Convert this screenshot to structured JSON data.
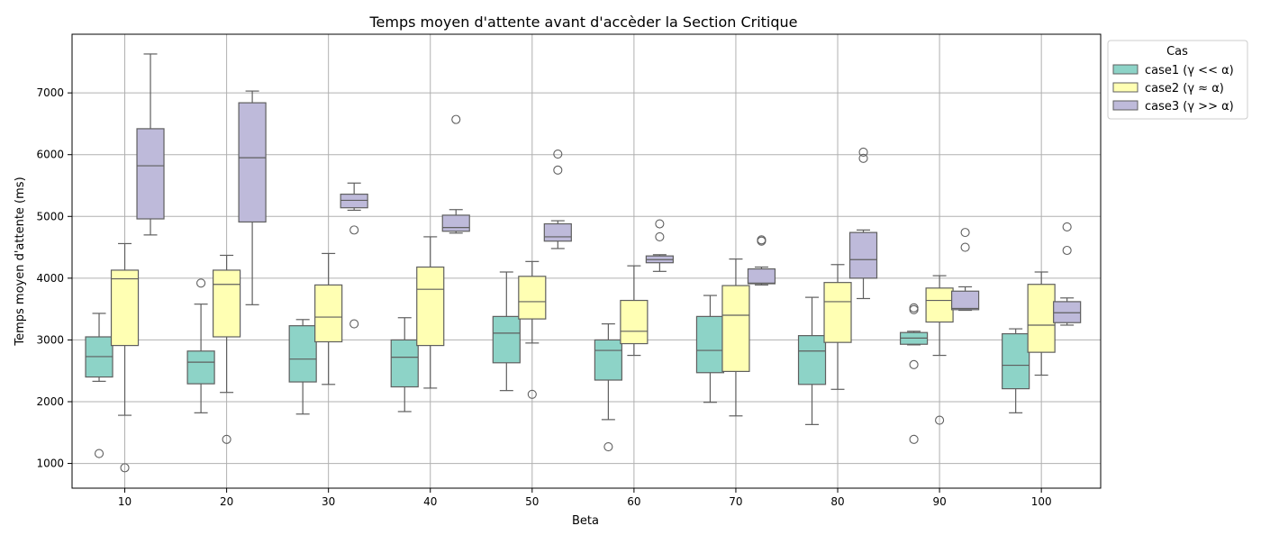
{
  "chart_data": {
    "type": "box",
    "title": "Temps moyen d'attente avant d'accèder la Section Critique",
    "xlabel": "Beta",
    "ylabel": "Temps moyen d'attente (ms)",
    "ylim": [
      600,
      7950
    ],
    "yticks": [
      1000,
      2000,
      3000,
      4000,
      5000,
      6000,
      7000
    ],
    "grid": true,
    "legend": {
      "title": "Cas",
      "placement": "upper-right-outside"
    },
    "categories": [
      "10",
      "20",
      "30",
      "40",
      "50",
      "60",
      "70",
      "80",
      "90",
      "100"
    ],
    "series": [
      {
        "name": "case1 (γ << α)",
        "color": "#8dd3c7",
        "boxes": [
          {
            "whislo": 2330,
            "q1": 2400,
            "med": 2730,
            "q3": 3050,
            "whishi": 3430,
            "fliers": [
              1160
            ]
          },
          {
            "whislo": 1820,
            "q1": 2290,
            "med": 2640,
            "q3": 2820,
            "whishi": 3580,
            "fliers": [
              3920
            ]
          },
          {
            "whislo": 1800,
            "q1": 2320,
            "med": 2690,
            "q3": 3230,
            "whishi": 3330,
            "fliers": []
          },
          {
            "whislo": 1840,
            "q1": 2240,
            "med": 2720,
            "q3": 3000,
            "whishi": 3360,
            "fliers": []
          },
          {
            "whislo": 2180,
            "q1": 2630,
            "med": 3110,
            "q3": 3380,
            "whishi": 4100,
            "fliers": []
          },
          {
            "whislo": 1710,
            "q1": 2350,
            "med": 2830,
            "q3": 3000,
            "whishi": 3260,
            "fliers": [
              1270
            ]
          },
          {
            "whislo": 1990,
            "q1": 2470,
            "med": 2830,
            "q3": 3380,
            "whishi": 3720,
            "fliers": []
          },
          {
            "whislo": 1630,
            "q1": 2280,
            "med": 2820,
            "q3": 3070,
            "whishi": 3690,
            "fliers": []
          },
          {
            "whislo": 2920,
            "q1": 2930,
            "med": 3030,
            "q3": 3120,
            "whishi": 3140,
            "fliers": [
              2600,
              1390,
              3490,
              3520
            ]
          },
          {
            "whislo": 1820,
            "q1": 2210,
            "med": 2590,
            "q3": 3100,
            "whishi": 3180,
            "fliers": []
          }
        ]
      },
      {
        "name": "case2 (γ ≈ α)",
        "color": "#ffffb3",
        "boxes": [
          {
            "whislo": 1780,
            "q1": 2910,
            "med": 3990,
            "q3": 4130,
            "whishi": 4560,
            "fliers": [
              930
            ]
          },
          {
            "whislo": 2150,
            "q1": 3050,
            "med": 3900,
            "q3": 4130,
            "whishi": 4370,
            "fliers": [
              1390
            ]
          },
          {
            "whislo": 2280,
            "q1": 2970,
            "med": 3370,
            "q3": 3890,
            "whishi": 4400,
            "fliers": []
          },
          {
            "whislo": 2220,
            "q1": 2910,
            "med": 3820,
            "q3": 4180,
            "whishi": 4670,
            "fliers": []
          },
          {
            "whislo": 2950,
            "q1": 3340,
            "med": 3620,
            "q3": 4030,
            "whishi": 4270,
            "fliers": [
              2120
            ]
          },
          {
            "whislo": 2750,
            "q1": 2940,
            "med": 3140,
            "q3": 3640,
            "whishi": 4200,
            "fliers": []
          },
          {
            "whislo": 1770,
            "q1": 2490,
            "med": 3400,
            "q3": 3880,
            "whishi": 4310,
            "fliers": []
          },
          {
            "whislo": 2200,
            "q1": 2960,
            "med": 3620,
            "q3": 3930,
            "whishi": 4220,
            "fliers": []
          },
          {
            "whislo": 2750,
            "q1": 3290,
            "med": 3640,
            "q3": 3840,
            "whishi": 4040,
            "fliers": [
              1700
            ]
          },
          {
            "whislo": 2430,
            "q1": 2800,
            "med": 3240,
            "q3": 3900,
            "whishi": 4100,
            "fliers": []
          }
        ]
      },
      {
        "name": "case3 (γ >> α)",
        "color": "#bebada",
        "boxes": [
          {
            "whislo": 4700,
            "q1": 4960,
            "med": 5820,
            "q3": 6420,
            "whishi": 7630,
            "fliers": []
          },
          {
            "whislo": 3570,
            "q1": 4910,
            "med": 5950,
            "q3": 6840,
            "whishi": 7030,
            "fliers": []
          },
          {
            "whislo": 5100,
            "q1": 5140,
            "med": 5260,
            "q3": 5360,
            "whishi": 5540,
            "fliers": [
              4780,
              3260
            ]
          },
          {
            "whislo": 4730,
            "q1": 4760,
            "med": 4820,
            "q3": 5020,
            "whishi": 5110,
            "fliers": [
              6570
            ]
          },
          {
            "whislo": 4480,
            "q1": 4600,
            "med": 4670,
            "q3": 4880,
            "whishi": 4930,
            "fliers": [
              6010,
              5750
            ]
          },
          {
            "whislo": 4110,
            "q1": 4250,
            "med": 4300,
            "q3": 4360,
            "whishi": 4380,
            "fliers": [
              4880,
              4670
            ]
          },
          {
            "whislo": 3890,
            "q1": 3910,
            "med": 3920,
            "q3": 4150,
            "whishi": 4180,
            "fliers": [
              4620,
              4600
            ]
          },
          {
            "whislo": 3670,
            "q1": 4000,
            "med": 4300,
            "q3": 4740,
            "whishi": 4780,
            "fliers": [
              6040,
              5940
            ]
          },
          {
            "whislo": 3480,
            "q1": 3490,
            "med": 3510,
            "q3": 3790,
            "whishi": 3860,
            "fliers": [
              4740,
              4500
            ]
          },
          {
            "whislo": 3240,
            "q1": 3280,
            "med": 3440,
            "q3": 3620,
            "whishi": 3680,
            "fliers": [
              4830,
              4450
            ]
          }
        ]
      }
    ]
  }
}
